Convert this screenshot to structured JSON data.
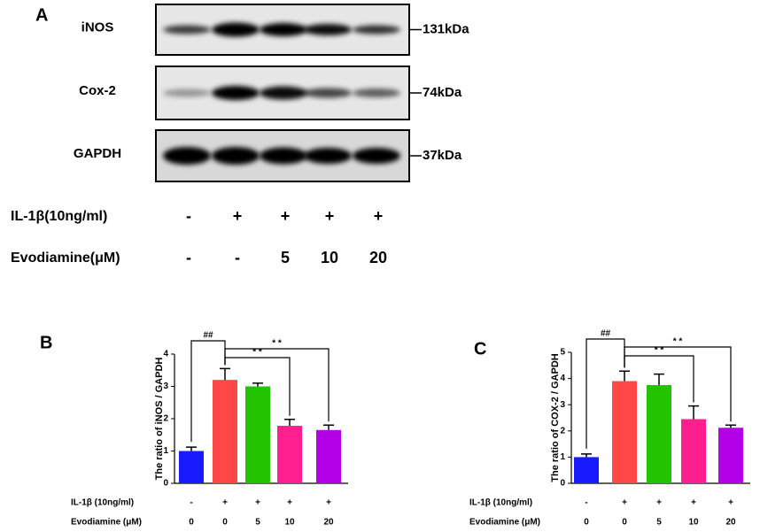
{
  "blot": {
    "label": "A",
    "rows": [
      {
        "name": "iNOS",
        "size": "131kDa"
      },
      {
        "name": "Cox-2",
        "size": "74kDa"
      },
      {
        "name": "GAPDH",
        "size": "37kDa"
      }
    ],
    "treatments": [
      {
        "name": "IL-1β(10ng/ml)",
        "values": [
          "-",
          "+",
          "+",
          "+",
          "+"
        ]
      },
      {
        "name": "Evodiamine(μM)",
        "values": [
          "-",
          "-",
          "5",
          "10",
          "20"
        ]
      }
    ]
  },
  "chart_data": [
    {
      "type": "bar",
      "panel": "B",
      "ylabel": "The ratio of iNOS / GAPDH",
      "values": [
        1.0,
        3.2,
        3.0,
        1.78,
        1.65
      ],
      "errors": [
        0.12,
        0.35,
        0.1,
        0.2,
        0.15
      ],
      "colors": [
        "#1a1aff",
        "#ff4747",
        "#22c400",
        "#ff1f8f",
        "#b400e6"
      ],
      "ylim": [
        0,
        4
      ],
      "yticks": [
        0,
        1,
        2,
        3,
        4
      ],
      "annotations": [
        "##",
        "* *",
        "* *"
      ],
      "treatments": [
        {
          "name": "IL-1β (10ng/ml)",
          "values": [
            "-",
            "+",
            "+",
            "+",
            "+"
          ]
        },
        {
          "name": "Evodiamine (μM)",
          "values": [
            "0",
            "0",
            "5",
            "10",
            "20"
          ]
        }
      ]
    },
    {
      "type": "bar",
      "panel": "C",
      "ylabel": "The ratio of COX-2 / GAPDH",
      "values": [
        1.0,
        3.9,
        3.75,
        2.45,
        2.12
      ],
      "errors": [
        0.12,
        0.38,
        0.42,
        0.5,
        0.1
      ],
      "colors": [
        "#1a1aff",
        "#ff4747",
        "#22c400",
        "#ff1f8f",
        "#b400e6"
      ],
      "ylim": [
        0,
        5
      ],
      "yticks": [
        0,
        1,
        2,
        3,
        4,
        5
      ],
      "annotations": [
        "##",
        "* *",
        "* *"
      ],
      "treatments": [
        {
          "name": "IL-1β (10ng/ml)",
          "values": [
            "-",
            "+",
            "+",
            "+",
            "+"
          ]
        },
        {
          "name": "Evodiamine (μM)",
          "values": [
            "0",
            "0",
            "5",
            "10",
            "20"
          ]
        }
      ]
    }
  ]
}
